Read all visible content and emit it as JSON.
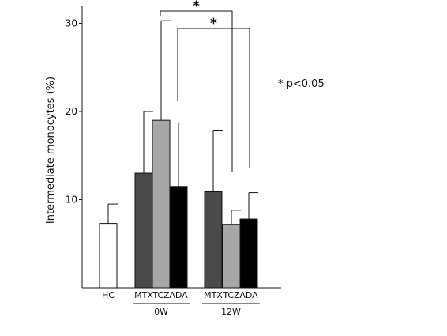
{
  "chart_data": {
    "type": "bar",
    "title": "",
    "xlabel": "",
    "ylabel": "Intermediate monocytes (%)",
    "ylim": [
      0,
      30
    ],
    "yticks": [
      10,
      20,
      30
    ],
    "grid": false,
    "bars": [
      {
        "label": "HC",
        "group": "",
        "value": 7.3,
        "error": 2.2,
        "color": "#ffffff"
      },
      {
        "label": "MTX",
        "group": "0W",
        "value": 13.0,
        "error": 7.0,
        "color": "#4a4a4a"
      },
      {
        "label": "TCZ",
        "group": "0W",
        "value": 19.0,
        "error": 11.3,
        "color": "#a6a6a6"
      },
      {
        "label": "ADA",
        "group": "0W",
        "value": 11.5,
        "error": 7.2,
        "color": "#000000"
      },
      {
        "label": "MTX",
        "group": "12W",
        "value": 10.9,
        "error": 6.9,
        "color": "#4a4a4a"
      },
      {
        "label": "TCZ",
        "group": "12W",
        "value": 7.2,
        "error": 1.6,
        "color": "#a6a6a6"
      },
      {
        "label": "ADA",
        "group": "12W",
        "value": 7.8,
        "error": 3.0,
        "color": "#000000"
      }
    ],
    "groups": [
      "0W",
      "12W"
    ],
    "significance": [
      {
        "from": {
          "label": "TCZ",
          "group": "0W"
        },
        "to": {
          "label": "TCZ",
          "group": "12W"
        },
        "marker": "*"
      },
      {
        "from": {
          "label": "ADA",
          "group": "0W"
        },
        "to": {
          "label": "ADA",
          "group": "12W"
        },
        "marker": "*"
      }
    ],
    "annotation": "* p<0.05"
  }
}
